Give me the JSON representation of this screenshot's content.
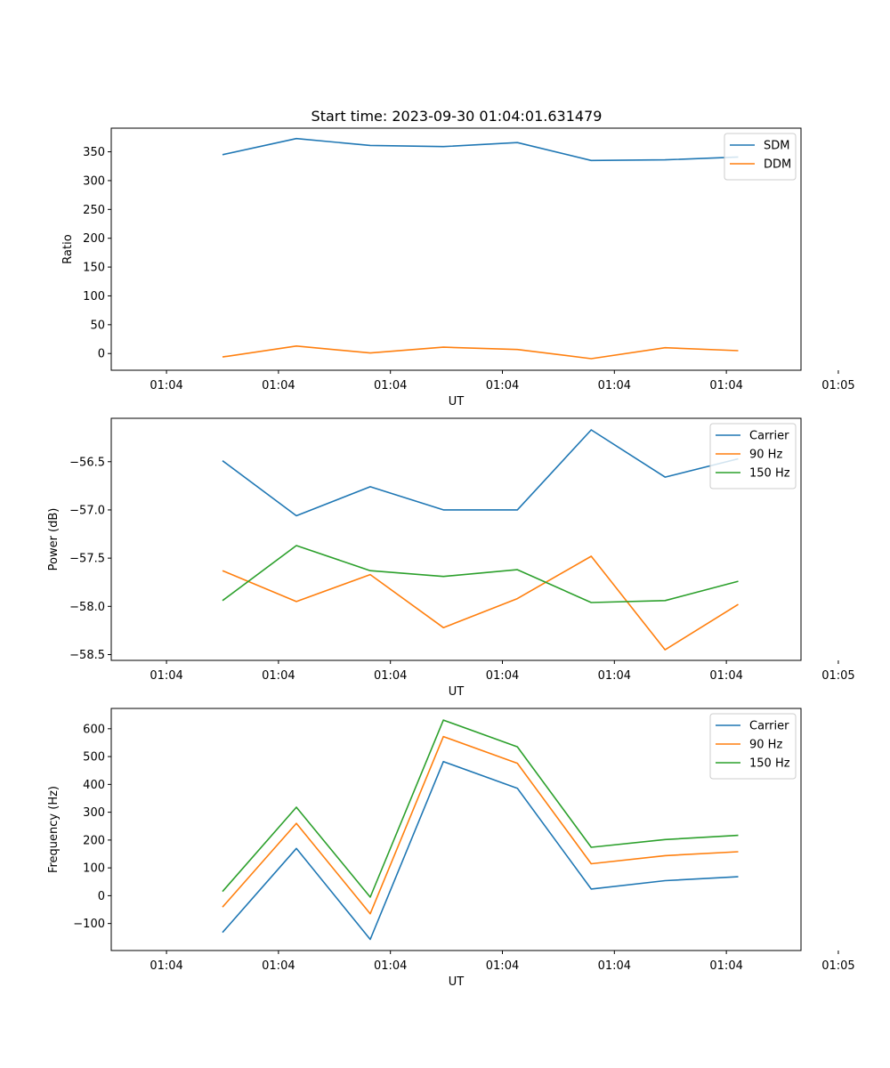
{
  "title": "Start time: 2023-09-30 01:04:01.631479",
  "chart_data": [
    {
      "type": "line",
      "ylabel": "Ratio",
      "xlabel": "UT",
      "x_ticklabels": [
        "01:04",
        "01:04",
        "01:04",
        "01:04",
        "01:04",
        "01:04",
        "01:05"
      ],
      "y_ticks": [
        0,
        50,
        100,
        150,
        200,
        250,
        300,
        350
      ],
      "y_ticklabels": [
        "0",
        "50",
        "100",
        "150",
        "200",
        "250",
        "300",
        "350"
      ],
      "ylim": [
        -29,
        391
      ],
      "xlim": [
        -0.74,
        8.5
      ],
      "x_tick_positions": [
        0,
        1.5,
        3,
        4.5,
        6,
        7.5,
        9
      ],
      "x": [
        0.75,
        1.74,
        2.73,
        3.71,
        4.7,
        5.69,
        6.68,
        7.66
      ],
      "legend_position": "upper-right",
      "series": [
        {
          "name": "SDM",
          "color": "#1f77b4",
          "values": [
            345,
            373,
            361,
            359,
            366,
            335,
            336,
            341
          ]
        },
        {
          "name": "DDM",
          "color": "#ff7f0e",
          "values": [
            -6,
            13,
            1,
            11,
            7,
            -9,
            10,
            5
          ]
        }
      ]
    },
    {
      "type": "line",
      "ylabel": "Power (dB)",
      "xlabel": "UT",
      "x_ticklabels": [
        "01:04",
        "01:04",
        "01:04",
        "01:04",
        "01:04",
        "01:04",
        "01:05"
      ],
      "y_ticks": [
        -58.5,
        -58.0,
        -57.5,
        -57.0,
        -56.5
      ],
      "y_ticklabels": [
        "−58.5",
        "−58.0",
        "−57.5",
        "−57.0",
        "−56.5"
      ],
      "ylim": [
        -58.56,
        -56.05
      ],
      "xlim": [
        -0.74,
        8.5
      ],
      "x_tick_positions": [
        0,
        1.5,
        3,
        4.5,
        6,
        7.5,
        9
      ],
      "x": [
        0.75,
        1.74,
        2.73,
        3.71,
        4.7,
        5.69,
        6.68,
        7.66
      ],
      "legend_position": "upper-right",
      "series": [
        {
          "name": "Carrier",
          "color": "#1f77b4",
          "values": [
            -56.49,
            -57.06,
            -56.76,
            -57.0,
            -57.0,
            -56.17,
            -56.66,
            -56.47
          ]
        },
        {
          "name": "90 Hz",
          "color": "#ff7f0e",
          "values": [
            -57.63,
            -57.95,
            -57.67,
            -58.22,
            -57.92,
            -57.48,
            -58.45,
            -57.98
          ]
        },
        {
          "name": "150 Hz",
          "color": "#2ca02c",
          "values": [
            -57.94,
            -57.37,
            -57.63,
            -57.69,
            -57.62,
            -57.96,
            -57.94,
            -57.74
          ]
        }
      ]
    },
    {
      "type": "line",
      "ylabel": "Frequency (Hz)",
      "xlabel": "UT",
      "x_ticklabels": [
        "01:04",
        "01:04",
        "01:04",
        "01:04",
        "01:04",
        "01:04",
        "01:05"
      ],
      "y_ticks": [
        -100,
        0,
        100,
        200,
        300,
        400,
        500,
        600
      ],
      "y_ticklabels": [
        "−100",
        "0",
        "100",
        "200",
        "300",
        "400",
        "500",
        "600"
      ],
      "ylim": [
        -197,
        673
      ],
      "xlim": [
        -0.74,
        8.5
      ],
      "x_tick_positions": [
        0,
        1.5,
        3,
        4.5,
        6,
        7.5,
        9
      ],
      "x": [
        0.75,
        1.74,
        2.73,
        3.71,
        4.7,
        5.69,
        6.68,
        7.66
      ],
      "legend_position": "upper-right",
      "series": [
        {
          "name": "Carrier",
          "color": "#1f77b4",
          "values": [
            -132,
            170,
            -157,
            482,
            386,
            24,
            54,
            68
          ]
        },
        {
          "name": "90 Hz",
          "color": "#ff7f0e",
          "values": [
            -41,
            260,
            -65,
            572,
            476,
            115,
            144,
            158
          ]
        },
        {
          "name": "150 Hz",
          "color": "#2ca02c",
          "values": [
            15,
            318,
            -5,
            631,
            535,
            174,
            202,
            217
          ]
        }
      ]
    }
  ]
}
